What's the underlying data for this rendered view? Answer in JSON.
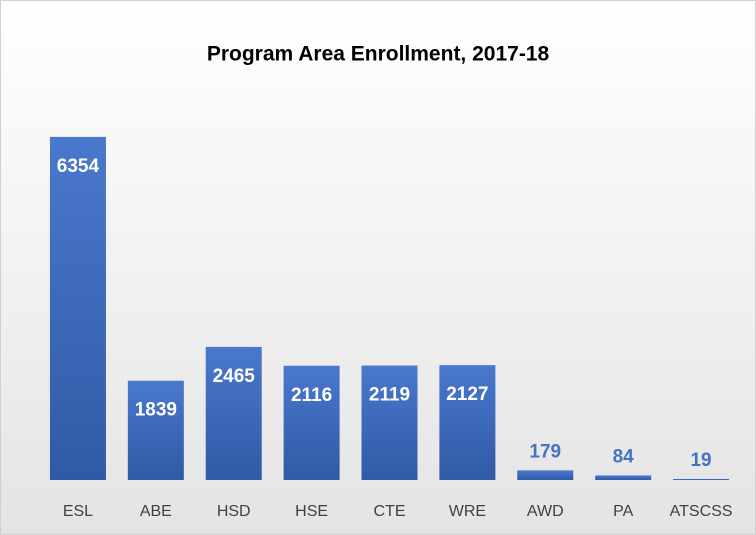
{
  "chart_data": {
    "type": "bar",
    "title": "Program Area Enrollment, 2017-18",
    "categories": [
      "ESL",
      "ABE",
      "HSD",
      "HSE",
      "CTE",
      "WRE",
      "AWD",
      "PA",
      "ATSCSS"
    ],
    "values": [
      6354,
      1839,
      2465,
      2116,
      2119,
      2127,
      179,
      84,
      19
    ],
    "color": "#4472c4",
    "ylim": [
      0,
      7000
    ]
  }
}
